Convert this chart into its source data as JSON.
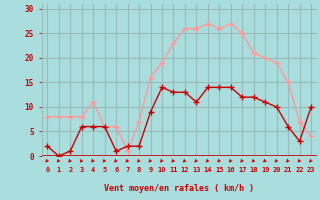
{
  "x": [
    0,
    1,
    2,
    3,
    4,
    5,
    6,
    7,
    8,
    9,
    10,
    11,
    12,
    13,
    14,
    15,
    16,
    17,
    18,
    19,
    20,
    21,
    22,
    23
  ],
  "wind_avg": [
    2,
    0,
    1,
    6,
    6,
    6,
    1,
    2,
    2,
    9,
    14,
    13,
    13,
    11,
    14,
    14,
    14,
    12,
    12,
    11,
    10,
    6,
    3,
    10
  ],
  "wind_gust": [
    8,
    8,
    8,
    8,
    11,
    6,
    6,
    1,
    7,
    16,
    19,
    23,
    26,
    26,
    27,
    26,
    27,
    25,
    21,
    20,
    19,
    15,
    7,
    4
  ],
  "avg_color": "#cc0000",
  "gust_color": "#ff9999",
  "bg_color": "#aadddd",
  "grid_color": "#99bbbb",
  "xlabel": "Vent moyen/en rafales ( km/h )",
  "xlabel_color": "#cc0000",
  "tick_color": "#cc0000",
  "ylim": [
    0,
    31
  ],
  "yticks": [
    0,
    5,
    10,
    15,
    20,
    25,
    30
  ],
  "marker_size": 3,
  "line_width": 1.0
}
